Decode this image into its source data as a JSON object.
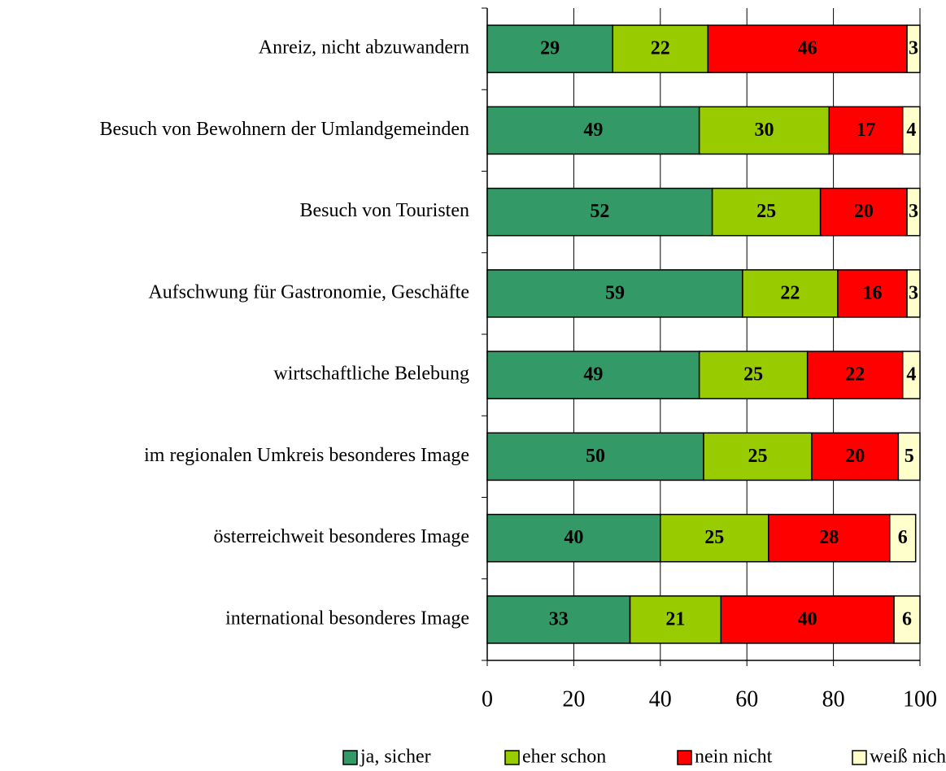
{
  "chart_data": {
    "type": "stacked_bar_horizontal",
    "categories": [
      "Anreiz, nicht abzuwandern",
      "Besuch von Bewohnern der Umlandgemeinden",
      "Besuch von Touristen",
      "Aufschwung für Gastronomie, Geschäfte",
      "wirtschaftliche Belebung",
      "im regionalen Umkreis besonderes Image",
      "österreichweit besonderes Image",
      "international besonderes Image"
    ],
    "series": [
      {
        "name": "ja, sicher",
        "color": "#339966",
        "values": [
          29,
          49,
          52,
          59,
          49,
          50,
          40,
          33
        ]
      },
      {
        "name": "eher schon",
        "color": "#99cc00",
        "values": [
          22,
          30,
          25,
          22,
          25,
          25,
          25,
          21
        ]
      },
      {
        "name": "nein nicht",
        "color": "#ff0000",
        "values": [
          46,
          17,
          20,
          16,
          22,
          20,
          28,
          40
        ]
      },
      {
        "name": "weiß nicht",
        "color": "#ffffcc",
        "values": [
          3,
          4,
          3,
          3,
          4,
          5,
          6,
          6
        ]
      }
    ],
    "xlim": [
      0,
      100
    ],
    "xticks": [
      0,
      20,
      40,
      60,
      80,
      100
    ],
    "grid": true
  }
}
